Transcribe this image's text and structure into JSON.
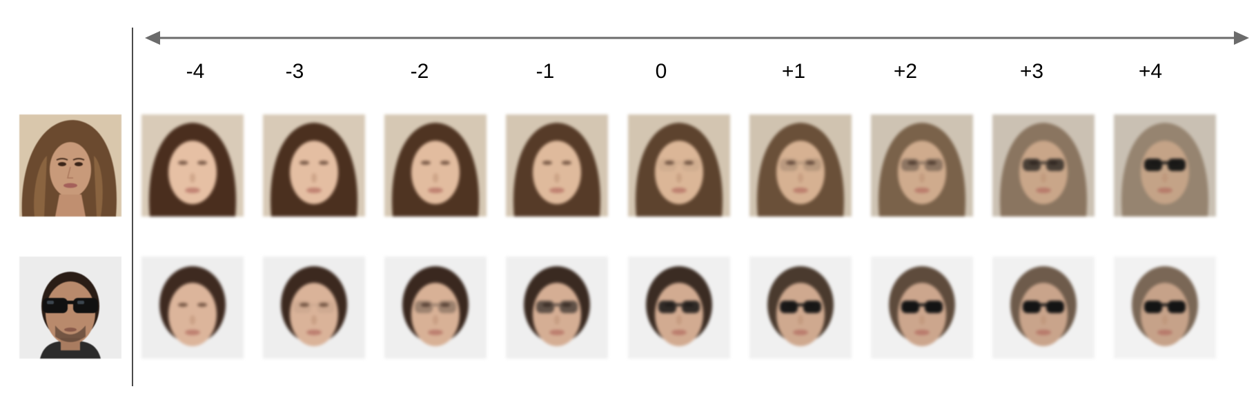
{
  "scale": {
    "labels": [
      "-4",
      "-3",
      "-2",
      "-1",
      "0",
      "+1",
      "+2",
      "+3",
      "+4"
    ],
    "arrow_color": "#6b6b6b"
  },
  "rows": [
    {
      "source": {
        "subject": "woman with long brown hair",
        "glasses": false
      },
      "outputs": [
        {
          "label": "-4",
          "hair": "#4a2e1e",
          "skin": "#e6c0a4",
          "bg": "#d9cbb8",
          "glasses": 0.0
        },
        {
          "label": "-3",
          "hair": "#4b301f",
          "skin": "#e4bea2",
          "bg": "#d8cab7",
          "glasses": 0.0
        },
        {
          "label": "-2",
          "hair": "#4f3422",
          "skin": "#e2bc9f",
          "bg": "#d6c8b4",
          "glasses": 0.0
        },
        {
          "label": "-1",
          "hair": "#563b28",
          "skin": "#dfba9c",
          "bg": "#d4c6b2",
          "glasses": 0.0
        },
        {
          "label": "0",
          "hair": "#5d432e",
          "skin": "#dbb697",
          "bg": "#d3c5b1",
          "glasses": 0.05
        },
        {
          "label": "+1",
          "hair": "#6a5039",
          "skin": "#d6b192",
          "bg": "#d0c3b0",
          "glasses": 0.15
        },
        {
          "label": "+2",
          "hair": "#7a624a",
          "skin": "#cfab8d",
          "bg": "#cec3b3",
          "glasses": 0.35
        },
        {
          "label": "+3",
          "hair": "#8a7560",
          "skin": "#c9a689",
          "bg": "#cbc1b3",
          "glasses": 0.7
        },
        {
          "label": "+4",
          "hair": "#968470",
          "skin": "#c4a387",
          "bg": "#c9c0b3",
          "glasses": 0.95
        }
      ]
    },
    {
      "source": {
        "subject": "man wearing dark sunglasses",
        "glasses": true
      },
      "outputs": [
        {
          "label": "-4",
          "hair": "#3e2a20",
          "skin": "#dcb59b",
          "bg": "#eeeeee",
          "glasses": 0.0
        },
        {
          "label": "-3",
          "hair": "#3c291f",
          "skin": "#dab399",
          "bg": "#eeeeee",
          "glasses": 0.05
        },
        {
          "label": "-2",
          "hair": "#3a281f",
          "skin": "#d8b196",
          "bg": "#efefef",
          "glasses": 0.3
        },
        {
          "label": "-1",
          "hair": "#3a2a21",
          "skin": "#d5ae94",
          "bg": "#efefef",
          "glasses": 0.6
        },
        {
          "label": "0",
          "hair": "#3b2c23",
          "skin": "#d2ab91",
          "bg": "#f0f0f0",
          "glasses": 0.85
        },
        {
          "label": "+1",
          "hair": "#4a3a2e",
          "skin": "#cfa98f",
          "bg": "#f0f0f0",
          "glasses": 0.97
        },
        {
          "label": "+2",
          "hair": "#5e4b3c",
          "skin": "#cca68d",
          "bg": "#f1f1f1",
          "glasses": 1.0
        },
        {
          "label": "+3",
          "hair": "#6e5b4b",
          "skin": "#c9a48b",
          "bg": "#f1f1f1",
          "glasses": 1.0
        },
        {
          "label": "+4",
          "hair": "#7a6756",
          "skin": "#c6a289",
          "bg": "#f2f2f2",
          "glasses": 1.0
        }
      ]
    }
  ]
}
